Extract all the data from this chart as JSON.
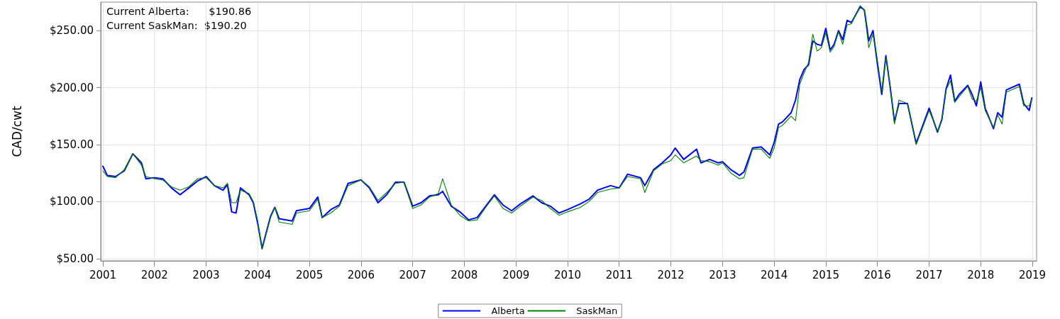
{
  "chart_data": {
    "type": "line",
    "ylabel": "CAD/cwt",
    "annotations": [
      "Current Alberta:      $190.86",
      "Current SaskMan:  $190.20"
    ],
    "x": [
      "2001-01",
      "2001-02",
      "2001-04",
      "2001-06",
      "2001-08",
      "2001-10",
      "2001-11",
      "2002-01",
      "2002-03",
      "2002-05",
      "2002-07",
      "2002-09",
      "2002-11",
      "2003-01",
      "2003-03",
      "2003-05",
      "2003-06",
      "2003-07",
      "2003-08",
      "2003-09",
      "2003-11",
      "2003-12",
      "2004-01",
      "2004-02",
      "2004-04",
      "2004-05",
      "2004-06",
      "2004-09",
      "2004-10",
      "2005-01",
      "2005-03",
      "2005-04",
      "2005-06",
      "2005-08",
      "2005-10",
      "2006-01",
      "2006-03",
      "2006-05",
      "2006-07",
      "2006-09",
      "2006-11",
      "2007-01",
      "2007-03",
      "2007-05",
      "2007-07",
      "2007-08",
      "2007-10",
      "2007-12",
      "2008-02",
      "2008-04",
      "2008-06",
      "2008-08",
      "2008-10",
      "2008-12",
      "2009-02",
      "2009-05",
      "2009-07",
      "2009-09",
      "2009-11",
      "2010-01",
      "2010-04",
      "2010-06",
      "2010-08",
      "2010-11",
      "2011-01",
      "2011-03",
      "2011-06",
      "2011-07",
      "2011-09",
      "2011-11",
      "2012-01",
      "2012-02",
      "2012-04",
      "2012-07",
      "2012-08",
      "2012-10",
      "2012-12",
      "2013-01",
      "2013-03",
      "2013-05",
      "2013-06",
      "2013-08",
      "2013-10",
      "2013-12",
      "2014-01",
      "2014-02",
      "2014-03",
      "2014-05",
      "2014-06",
      "2014-07",
      "2014-08",
      "2014-09",
      "2014-10",
      "2014-11",
      "2014-12",
      "2015-01",
      "2015-02",
      "2015-03",
      "2015-04",
      "2015-05",
      "2015-06",
      "2015-07",
      "2015-09",
      "2015-10",
      "2015-11",
      "2015-12",
      "2016-01",
      "2016-02",
      "2016-03",
      "2016-04",
      "2016-05",
      "2016-06",
      "2016-08",
      "2016-10",
      "2017-01",
      "2017-03",
      "2017-04",
      "2017-05",
      "2017-06",
      "2017-07",
      "2017-08",
      "2017-10",
      "2017-11",
      "2017-12",
      "2018-01",
      "2018-02",
      "2018-04",
      "2018-05",
      "2018-06",
      "2018-07",
      "2018-10",
      "2018-11",
      "2018-12-10",
      "2018-12-28"
    ],
    "series": [
      {
        "name": "Alberta",
        "color": "#0000ff",
        "values": [
          131,
          123,
          122,
          127,
          142,
          134,
          120,
          121,
          120,
          112,
          106,
          112,
          118,
          122,
          114,
          110,
          115,
          91,
          90,
          112,
          106,
          99,
          81,
          59,
          87,
          95,
          85,
          83,
          92,
          94,
          104,
          86,
          93,
          97,
          116,
          119,
          112,
          99,
          106,
          117,
          117,
          96,
          99,
          105,
          106,
          109,
          96,
          91,
          84,
          86,
          96,
          106,
          97,
          92,
          98,
          105,
          99,
          96,
          90,
          93,
          98,
          102,
          110,
          114,
          112,
          124,
          121,
          114,
          128,
          134,
          141,
          147,
          137,
          146,
          134,
          137,
          134,
          135,
          128,
          123,
          126,
          147,
          148,
          141,
          152,
          168,
          170,
          178,
          189,
          207,
          216,
          220,
          241,
          238,
          237,
          252,
          233,
          238,
          250,
          242,
          259,
          257,
          271,
          268,
          241,
          250,
          221,
          194,
          228,
          200,
          170,
          186,
          186,
          151,
          182,
          161,
          172,
          199,
          211,
          188,
          194,
          202,
          194,
          184,
          205,
          182,
          164,
          178,
          174,
          198,
          203,
          186,
          180,
          190.86
        ]
      },
      {
        "name": "SaskMan",
        "color": "#008000",
        "values": [
          127,
          122,
          121,
          128,
          142,
          132,
          122,
          120,
          119,
          113,
          110,
          113,
          120,
          121,
          114,
          112,
          116,
          99,
          99,
          110,
          107,
          100,
          83,
          58,
          86,
          95,
          82,
          80,
          90,
          92,
          102,
          86,
          90,
          96,
          114,
          119,
          113,
          101,
          108,
          116,
          117,
          94,
          97,
          104,
          107,
          120,
          97,
          88,
          83,
          84,
          95,
          105,
          94,
          90,
          96,
          104,
          101,
          94,
          88,
          91,
          95,
          100,
          108,
          111,
          112,
          122,
          120,
          108,
          127,
          133,
          136,
          141,
          134,
          140,
          136,
          135,
          132,
          134,
          125,
          120,
          121,
          146,
          146,
          138,
          147,
          165,
          167,
          175,
          171,
          203,
          213,
          222,
          247,
          232,
          235,
          248,
          231,
          236,
          249,
          238,
          255,
          256,
          272,
          268,
          235,
          247,
          224,
          197,
          226,
          201,
          168,
          189,
          186,
          150,
          180,
          162,
          171,
          198,
          206,
          187,
          192,
          201,
          190,
          188,
          200,
          180,
          165,
          176,
          168,
          196,
          201,
          184,
          184,
          190.2
        ]
      }
    ],
    "xlim": [
      "2000-12-17",
      "2019-01-31"
    ],
    "xticks": [
      "2001",
      "2002",
      "2003",
      "2004",
      "2005",
      "2006",
      "2007",
      "2008",
      "2009",
      "2010",
      "2011",
      "2012",
      "2013",
      "2014",
      "2015",
      "2016",
      "2017",
      "2018",
      "2019"
    ],
    "ylim": [
      48,
      275
    ],
    "yticks": [
      {
        "value": 50,
        "label": "$50.00"
      },
      {
        "value": 100,
        "label": "$100.00"
      },
      {
        "value": 150,
        "label": "$150.00"
      },
      {
        "value": 200,
        "label": "$200.00"
      },
      {
        "value": 250,
        "label": "$250.00"
      }
    ],
    "grid": true,
    "legend": "bottom",
    "marker": "none",
    "line_style": "solid"
  }
}
